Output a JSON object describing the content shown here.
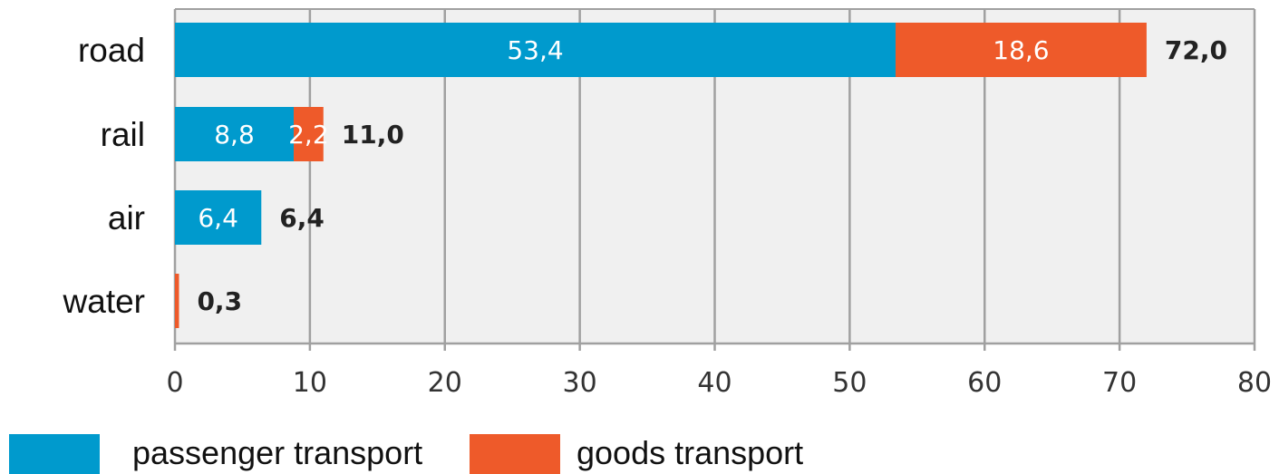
{
  "chart_data": {
    "type": "bar",
    "orientation": "horizontal",
    "stacked": true,
    "categories": [
      "road",
      "rail",
      "air",
      "water"
    ],
    "series": [
      {
        "name": "passenger transport",
        "color": "#009ACD",
        "values": [
          53.4,
          8.8,
          6.4,
          0
        ],
        "labels": [
          "53,4",
          "8,8",
          "6,4",
          ""
        ]
      },
      {
        "name": "goods transport",
        "color": "#EE5A2A",
        "values": [
          18.6,
          2.2,
          0,
          0.3
        ],
        "labels": [
          "18,6",
          "2,2",
          "",
          ""
        ]
      }
    ],
    "totals": [
      72.0,
      11.0,
      6.4,
      0.3
    ],
    "total_labels": [
      "72,0",
      "11,0",
      "6,4",
      "0,3"
    ],
    "xlim": [
      0,
      80
    ],
    "xticks": [
      0,
      10,
      20,
      30,
      40,
      50,
      60,
      70,
      80
    ],
    "xtick_labels": [
      "0",
      "10",
      "20",
      "30",
      "40",
      "50",
      "60",
      "70",
      "80"
    ],
    "grid": true,
    "legend_position": "bottom-left",
    "title": "",
    "xlabel": "",
    "ylabel": "",
    "plot_background": "#F0F0F0",
    "grid_color": "#A0A0A0"
  }
}
